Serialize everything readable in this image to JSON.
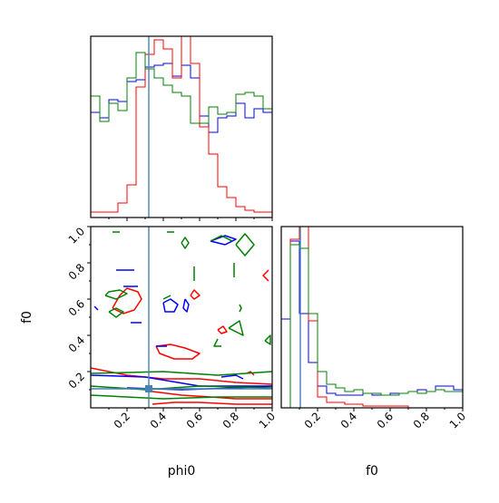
{
  "chart_data": {
    "type": "corner",
    "parameters": [
      "phi0",
      "f0"
    ],
    "range": [
      0,
      1
    ],
    "ticks": [
      0.2,
      0.4,
      0.6,
      0.8,
      1.0
    ],
    "tick_labels": [
      "0.2",
      "0.4",
      "0.6",
      "0.8",
      "1.0"
    ],
    "xlabels": [
      "phi0",
      "f0"
    ],
    "ylabel": "f0",
    "truth": {
      "phi0": 0.32,
      "f0": 0.105
    },
    "colors": {
      "blue": "#0000ff",
      "red": "#ff0000",
      "green": "#008000",
      "truth": "#4682b4"
    },
    "hist_phi0": {
      "bin_edges": [
        0,
        0.05,
        0.1,
        0.15,
        0.2,
        0.25,
        0.3,
        0.35,
        0.4,
        0.45,
        0.5,
        0.55,
        0.6,
        0.65,
        0.7,
        0.75,
        0.8,
        0.85,
        0.9,
        0.95,
        1.0
      ],
      "series": [
        {
          "color": "blue",
          "values": [
            0.58,
            0.55,
            0.65,
            0.64,
            0.75,
            0.76,
            0.83,
            0.84,
            0.85,
            0.78,
            0.84,
            0.77,
            0.56,
            0.47,
            0.55,
            0.56,
            0.63,
            0.55,
            0.6,
            0.58
          ]
        },
        {
          "color": "red",
          "values": [
            0.03,
            0.03,
            0.03,
            0.08,
            0.18,
            0.72,
            0.9,
            0.98,
            0.93,
            0.77,
            1.0,
            0.85,
            0.5,
            0.35,
            0.17,
            0.11,
            0.06,
            0.04,
            0.03,
            0.03
          ]
        },
        {
          "color": "green",
          "values": [
            0.67,
            0.53,
            0.63,
            0.59,
            0.77,
            0.91,
            0.82,
            0.77,
            0.73,
            0.69,
            0.67,
            0.52,
            0.52,
            0.61,
            0.57,
            0.58,
            0.68,
            0.69,
            0.67,
            0.6
          ]
        }
      ]
    },
    "hist_f0": {
      "bin_edges": [
        0,
        0.05,
        0.1,
        0.15,
        0.2,
        0.25,
        0.3,
        0.35,
        0.4,
        0.45,
        0.5,
        0.55,
        0.6,
        0.65,
        0.7,
        0.75,
        0.8,
        0.85,
        0.9,
        0.95,
        1.0
      ],
      "series": [
        {
          "color": "blue",
          "values": [
            0.49,
            0.92,
            0.52,
            0.25,
            0.12,
            0.08,
            0.07,
            0.07,
            0.07,
            0.08,
            0.07,
            0.07,
            0.08,
            0.08,
            0.09,
            0.1,
            0.09,
            0.12,
            0.12,
            0.1
          ]
        },
        {
          "color": "red",
          "values": [
            0.0,
            0.93,
            1.0,
            0.48,
            0.06,
            0.03,
            0.03,
            0.02,
            0.02,
            0.01,
            0.01,
            0.01,
            0.01,
            0.01,
            0.0,
            0.0,
            0.0,
            0.0,
            0.0,
            0.0
          ]
        },
        {
          "color": "green",
          "values": [
            0.0,
            0.9,
            0.88,
            0.52,
            0.2,
            0.13,
            0.11,
            0.09,
            0.1,
            0.08,
            0.08,
            0.07,
            0.07,
            0.08,
            0.09,
            0.08,
            0.09,
            0.1,
            0.09,
            0.09
          ]
        }
      ]
    },
    "scatter_contours": [
      {
        "color": "red",
        "pts": [
          [
            0.12,
            0.55
          ],
          [
            0.16,
            0.62
          ],
          [
            0.2,
            0.66
          ],
          [
            0.26,
            0.64
          ],
          [
            0.28,
            0.6
          ],
          [
            0.24,
            0.54
          ],
          [
            0.18,
            0.52
          ],
          [
            0.12,
            0.55
          ]
        ]
      },
      {
        "color": "red",
        "pts": [
          [
            0.36,
            0.34
          ],
          [
            0.44,
            0.35
          ],
          [
            0.52,
            0.33
          ],
          [
            0.6,
            0.3
          ],
          [
            0.56,
            0.27
          ],
          [
            0.46,
            0.27
          ],
          [
            0.38,
            0.3
          ],
          [
            0.36,
            0.34
          ]
        ]
      },
      {
        "color": "red",
        "pts": [
          [
            0.0,
            0.22
          ],
          [
            0.2,
            0.18
          ],
          [
            0.4,
            0.16
          ],
          [
            0.6,
            0.16
          ],
          [
            0.8,
            0.14
          ],
          [
            1.0,
            0.13
          ]
        ]
      },
      {
        "color": "red",
        "pts": [
          [
            0.34,
            0.09
          ],
          [
            0.5,
            0.07
          ],
          [
            0.66,
            0.06
          ],
          [
            0.8,
            0.05
          ],
          [
            1.0,
            0.05
          ]
        ]
      },
      {
        "color": "red",
        "pts": [
          [
            0.34,
            0.02
          ],
          [
            0.46,
            0.03
          ],
          [
            0.6,
            0.03
          ],
          [
            0.8,
            0.02
          ],
          [
            1.0,
            0.02
          ]
        ]
      },
      {
        "color": "red",
        "pts": [
          [
            0.98,
            0.76
          ],
          [
            0.95,
            0.73
          ],
          [
            0.98,
            0.7
          ]
        ]
      },
      {
        "color": "red",
        "pts": [
          [
            0.55,
            0.62
          ],
          [
            0.57,
            0.65
          ],
          [
            0.6,
            0.62
          ],
          [
            0.57,
            0.6
          ],
          [
            0.55,
            0.62
          ]
        ]
      },
      {
        "color": "red",
        "pts": [
          [
            0.7,
            0.43
          ],
          [
            0.73,
            0.45
          ],
          [
            0.75,
            0.42
          ],
          [
            0.72,
            0.41
          ],
          [
            0.7,
            0.43
          ]
        ]
      },
      {
        "color": "red",
        "pts": [
          [
            0.86,
            0.19
          ],
          [
            0.88,
            0.2
          ],
          [
            0.9,
            0.18
          ]
        ]
      },
      {
        "color": "blue",
        "pts": [
          [
            0.4,
            0.58
          ],
          [
            0.44,
            0.6
          ],
          [
            0.48,
            0.57
          ],
          [
            0.46,
            0.53
          ],
          [
            0.41,
            0.53
          ],
          [
            0.4,
            0.58
          ]
        ]
      },
      {
        "color": "blue",
        "pts": [
          [
            0.52,
            0.6
          ],
          [
            0.54,
            0.57
          ],
          [
            0.53,
            0.53
          ],
          [
            0.51,
            0.55
          ],
          [
            0.52,
            0.6
          ]
        ]
      },
      {
        "color": "blue",
        "pts": [
          [
            0.66,
            0.92
          ],
          [
            0.74,
            0.95
          ],
          [
            0.8,
            0.93
          ],
          [
            0.74,
            0.9
          ],
          [
            0.66,
            0.92
          ]
        ]
      },
      {
        "color": "blue",
        "pts": [
          [
            0.14,
            0.76
          ],
          [
            0.24,
            0.76
          ]
        ]
      },
      {
        "color": "blue",
        "pts": [
          [
            0.18,
            0.67
          ],
          [
            0.26,
            0.67
          ]
        ]
      },
      {
        "color": "blue",
        "pts": [
          [
            0.36,
            0.34
          ],
          [
            0.42,
            0.34
          ]
        ]
      },
      {
        "color": "blue",
        "pts": [
          [
            0.22,
            0.47
          ],
          [
            0.28,
            0.47
          ]
        ]
      },
      {
        "color": "blue",
        "pts": [
          [
            0.0,
            0.18
          ],
          [
            0.3,
            0.17
          ],
          [
            0.6,
            0.12
          ],
          [
            1.0,
            0.12
          ]
        ]
      },
      {
        "color": "blue",
        "pts": [
          [
            0.2,
            0.11
          ],
          [
            0.5,
            0.1
          ],
          [
            0.8,
            0.11
          ],
          [
            1.0,
            0.12
          ]
        ]
      },
      {
        "color": "blue",
        "pts": [
          [
            0.72,
            0.17
          ],
          [
            0.8,
            0.18
          ],
          [
            0.84,
            0.16
          ]
        ]
      },
      {
        "color": "blue",
        "pts": [
          [
            0.02,
            0.56
          ],
          [
            0.04,
            0.54
          ]
        ]
      },
      {
        "color": "green",
        "pts": [
          [
            0.08,
            0.62
          ],
          [
            0.14,
            0.6
          ],
          [
            0.2,
            0.63
          ],
          [
            0.16,
            0.65
          ],
          [
            0.1,
            0.64
          ],
          [
            0.08,
            0.62
          ]
        ]
      },
      {
        "color": "green",
        "pts": [
          [
            0.1,
            0.53
          ],
          [
            0.14,
            0.5
          ],
          [
            0.18,
            0.53
          ],
          [
            0.14,
            0.55
          ],
          [
            0.1,
            0.53
          ]
        ]
      },
      {
        "color": "green",
        "pts": [
          [
            0.0,
            0.19
          ],
          [
            0.4,
            0.2
          ],
          [
            0.7,
            0.18
          ],
          [
            1.0,
            0.2
          ]
        ]
      },
      {
        "color": "green",
        "pts": [
          [
            0.0,
            0.12
          ],
          [
            0.3,
            0.1
          ],
          [
            0.6,
            0.12
          ],
          [
            1.0,
            0.11
          ]
        ]
      },
      {
        "color": "green",
        "pts": [
          [
            0.0,
            0.07
          ],
          [
            0.4,
            0.05
          ],
          [
            0.7,
            0.06
          ],
          [
            1.0,
            0.06
          ]
        ]
      },
      {
        "color": "green",
        "pts": [
          [
            0.5,
            0.91
          ],
          [
            0.52,
            0.88
          ],
          [
            0.54,
            0.91
          ],
          [
            0.52,
            0.94
          ],
          [
            0.5,
            0.91
          ]
        ]
      },
      {
        "color": "green",
        "pts": [
          [
            0.8,
            0.9
          ],
          [
            0.85,
            0.96
          ],
          [
            0.9,
            0.9
          ],
          [
            0.85,
            0.84
          ],
          [
            0.8,
            0.9
          ]
        ]
      },
      {
        "color": "green",
        "pts": [
          [
            0.66,
            0.92
          ],
          [
            0.72,
            0.95
          ],
          [
            0.78,
            0.92
          ]
        ]
      },
      {
        "color": "green",
        "pts": [
          [
            0.79,
            0.8
          ],
          [
            0.79,
            0.72
          ]
        ]
      },
      {
        "color": "green",
        "pts": [
          [
            0.57,
            0.78
          ],
          [
            0.57,
            0.7
          ]
        ]
      },
      {
        "color": "green",
        "pts": [
          [
            0.7,
            0.38
          ],
          [
            0.68,
            0.34
          ],
          [
            0.72,
            0.34
          ]
        ]
      },
      {
        "color": "green",
        "pts": [
          [
            0.76,
            0.44
          ],
          [
            0.82,
            0.48
          ],
          [
            0.84,
            0.4
          ],
          [
            0.76,
            0.44
          ]
        ]
      },
      {
        "color": "green",
        "pts": [
          [
            0.82,
            0.57
          ],
          [
            0.83,
            0.55
          ],
          [
            0.82,
            0.53
          ]
        ]
      },
      {
        "color": "green",
        "pts": [
          [
            0.4,
            0.6
          ],
          [
            0.44,
            0.62
          ]
        ]
      },
      {
        "color": "green",
        "pts": [
          [
            0.96,
            0.37
          ],
          [
            0.99,
            0.4
          ],
          [
            0.99,
            0.35
          ],
          [
            0.96,
            0.37
          ]
        ]
      },
      {
        "color": "green",
        "pts": [
          [
            0.12,
            0.97
          ],
          [
            0.16,
            0.97
          ]
        ]
      },
      {
        "color": "green",
        "pts": [
          [
            0.42,
            0.97
          ],
          [
            0.46,
            0.97
          ]
        ]
      }
    ]
  }
}
